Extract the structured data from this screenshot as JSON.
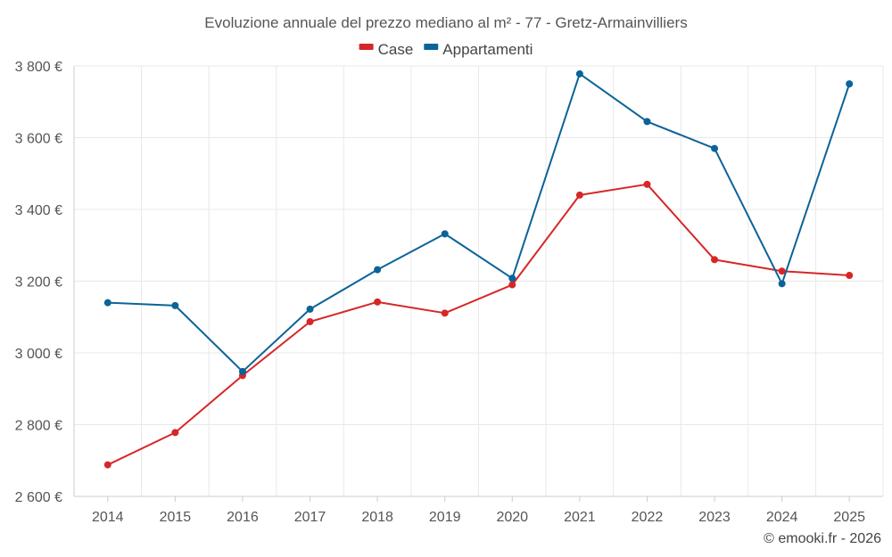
{
  "chart_data": {
    "type": "line",
    "title": "Evoluzione annuale del prezzo mediano al m² - 77 - Gretz-Armainvilliers",
    "categories": [
      "2014",
      "2015",
      "2016",
      "2017",
      "2018",
      "2019",
      "2020",
      "2021",
      "2022",
      "2023",
      "2024",
      "2025"
    ],
    "series": [
      {
        "name": "Case",
        "color": "#d62728",
        "values": [
          2688,
          2778,
          2937,
          3087,
          3142,
          3111,
          3190,
          3440,
          3470,
          3260,
          3228,
          3216
        ]
      },
      {
        "name": "Appartamenti",
        "color": "#0b6398",
        "values": [
          3140,
          3132,
          2948,
          3122,
          3232,
          3332,
          3208,
          3778,
          3645,
          3570,
          3193,
          3750
        ]
      }
    ],
    "ylim": [
      2600,
      3800
    ],
    "yticks": [
      2600,
      2800,
      3000,
      3200,
      3400,
      3600,
      3800
    ],
    "ytick_labels": [
      "2 600 €",
      "2 800 €",
      "3 000 €",
      "3 200 €",
      "3 400 €",
      "3 600 €",
      "3 800 €"
    ],
    "grid": true,
    "legend": "top-center",
    "xlabel": "",
    "ylabel": ""
  },
  "credit": "© emooki.fr - 2026"
}
